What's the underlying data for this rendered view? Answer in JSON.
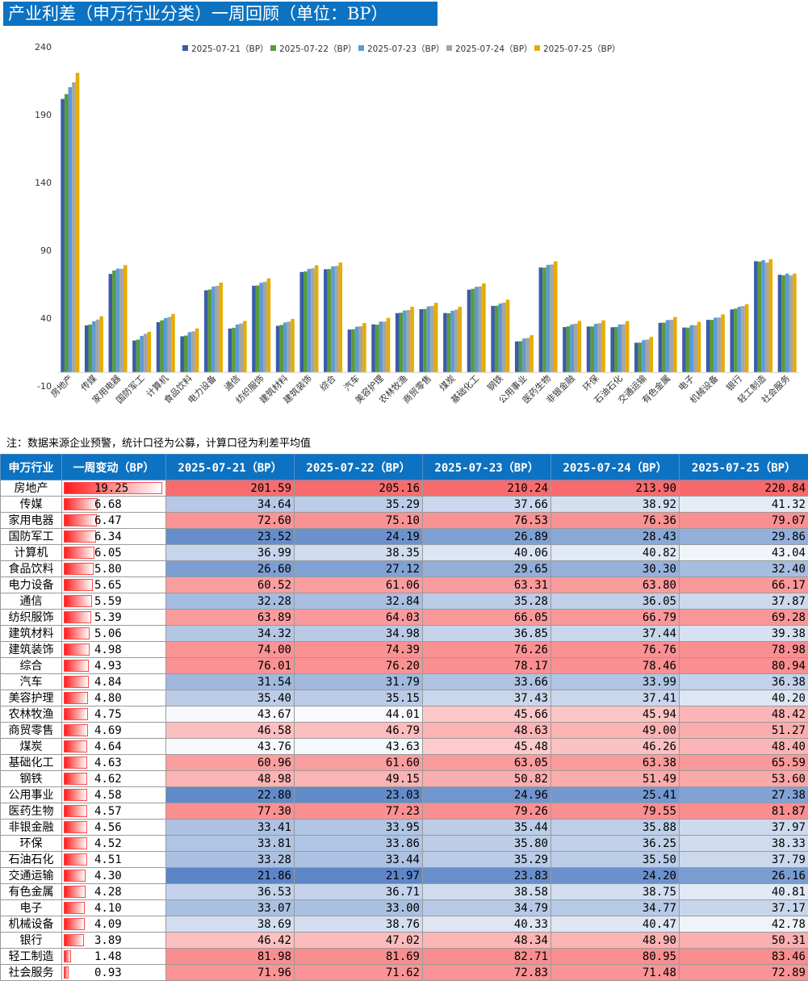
{
  "title": "产业利差（申万行业分类）一周回顾（单位：BP）",
  "note": "注：数据来源企业预警，统计口径为公募，计算口径为利差平均值",
  "colors": {
    "series": [
      "#3a5ca8",
      "#5a9a3c",
      "#5b9bd5",
      "#a5a5a5",
      "#e6ac00"
    ],
    "header_bg": "#0c72c1",
    "heat_low": "#5b85c6",
    "heat_mid": "#ffffff",
    "heat_high": "#f8696b"
  },
  "table": {
    "headers": [
      "申万行业",
      "一周变动（BP）",
      "2025-07-21（BP）",
      "2025-07-22（BP）",
      "2025-07-23（BP）",
      "2025-07-24（BP）",
      "2025-07-25（BP）"
    ],
    "rows": [
      {
        "industry": "房地产",
        "change": "19.25",
        "values": [
          "201.59",
          "205.16",
          "210.24",
          "213.90",
          "220.84"
        ]
      },
      {
        "industry": "传媒",
        "change": "6.68",
        "values": [
          "34.64",
          "35.29",
          "37.66",
          "38.92",
          "41.32"
        ]
      },
      {
        "industry": "家用电器",
        "change": "6.47",
        "values": [
          "72.60",
          "75.10",
          "76.53",
          "76.36",
          "79.07"
        ]
      },
      {
        "industry": "国防军工",
        "change": "6.34",
        "values": [
          "23.52",
          "24.19",
          "26.89",
          "28.43",
          "29.86"
        ]
      },
      {
        "industry": "计算机",
        "change": "6.05",
        "values": [
          "36.99",
          "38.35",
          "40.06",
          "40.82",
          "43.04"
        ]
      },
      {
        "industry": "食品饮料",
        "change": "5.80",
        "values": [
          "26.60",
          "27.12",
          "29.65",
          "30.30",
          "32.40"
        ]
      },
      {
        "industry": "电力设备",
        "change": "5.65",
        "values": [
          "60.52",
          "61.06",
          "63.31",
          "63.80",
          "66.17"
        ]
      },
      {
        "industry": "通信",
        "change": "5.59",
        "values": [
          "32.28",
          "32.84",
          "35.28",
          "36.05",
          "37.87"
        ]
      },
      {
        "industry": "纺织服饰",
        "change": "5.39",
        "values": [
          "63.89",
          "64.03",
          "66.05",
          "66.79",
          "69.28"
        ]
      },
      {
        "industry": "建筑材料",
        "change": "5.06",
        "values": [
          "34.32",
          "34.98",
          "36.85",
          "37.44",
          "39.38"
        ]
      },
      {
        "industry": "建筑装饰",
        "change": "4.98",
        "values": [
          "74.00",
          "74.39",
          "76.26",
          "76.76",
          "78.98"
        ]
      },
      {
        "industry": "综合",
        "change": "4.93",
        "values": [
          "76.01",
          "76.20",
          "78.17",
          "78.46",
          "80.94"
        ]
      },
      {
        "industry": "汽车",
        "change": "4.84",
        "values": [
          "31.54",
          "31.79",
          "33.66",
          "33.99",
          "36.38"
        ]
      },
      {
        "industry": "美容护理",
        "change": "4.80",
        "values": [
          "35.40",
          "35.15",
          "37.43",
          "37.41",
          "40.20"
        ]
      },
      {
        "industry": "农林牧渔",
        "change": "4.75",
        "values": [
          "43.67",
          "44.01",
          "45.66",
          "45.94",
          "48.42"
        ]
      },
      {
        "industry": "商贸零售",
        "change": "4.69",
        "values": [
          "46.58",
          "46.79",
          "48.63",
          "49.00",
          "51.27"
        ]
      },
      {
        "industry": "煤炭",
        "change": "4.64",
        "values": [
          "43.76",
          "43.63",
          "45.48",
          "46.26",
          "48.40"
        ]
      },
      {
        "industry": "基础化工",
        "change": "4.63",
        "values": [
          "60.96",
          "61.60",
          "63.05",
          "63.38",
          "65.59"
        ]
      },
      {
        "industry": "钢铁",
        "change": "4.62",
        "values": [
          "48.98",
          "49.15",
          "50.82",
          "51.49",
          "53.60"
        ]
      },
      {
        "industry": "公用事业",
        "change": "4.58",
        "values": [
          "22.80",
          "23.03",
          "24.96",
          "25.41",
          "27.38"
        ]
      },
      {
        "industry": "医药生物",
        "change": "4.57",
        "values": [
          "77.30",
          "77.23",
          "79.26",
          "79.55",
          "81.87"
        ]
      },
      {
        "industry": "非银金融",
        "change": "4.56",
        "values": [
          "33.41",
          "33.95",
          "35.44",
          "35.88",
          "37.97"
        ]
      },
      {
        "industry": "环保",
        "change": "4.52",
        "values": [
          "33.81",
          "33.86",
          "35.80",
          "36.25",
          "38.33"
        ]
      },
      {
        "industry": "石油石化",
        "change": "4.51",
        "values": [
          "33.28",
          "33.44",
          "35.29",
          "35.50",
          "37.79"
        ]
      },
      {
        "industry": "交通运输",
        "change": "4.30",
        "values": [
          "21.86",
          "21.97",
          "23.83",
          "24.20",
          "26.16"
        ]
      },
      {
        "industry": "有色金属",
        "change": "4.28",
        "values": [
          "36.53",
          "36.71",
          "38.58",
          "38.75",
          "40.81"
        ]
      },
      {
        "industry": "电子",
        "change": "4.10",
        "values": [
          "33.07",
          "33.00",
          "34.79",
          "34.77",
          "37.17"
        ]
      },
      {
        "industry": "机械设备",
        "change": "4.09",
        "values": [
          "38.69",
          "38.76",
          "40.33",
          "40.47",
          "42.78"
        ]
      },
      {
        "industry": "银行",
        "change": "3.89",
        "values": [
          "46.42",
          "47.02",
          "48.34",
          "48.90",
          "50.31"
        ]
      },
      {
        "industry": "轻工制造",
        "change": "1.48",
        "values": [
          "81.98",
          "81.69",
          "82.71",
          "80.95",
          "83.46"
        ]
      },
      {
        "industry": "社会服务",
        "change": "0.93",
        "values": [
          "71.96",
          "71.62",
          "72.83",
          "71.48",
          "72.89"
        ]
      }
    ]
  },
  "chart_data": {
    "type": "bar",
    "title": "",
    "xlabel": "",
    "ylabel": "",
    "ylim": [
      -10,
      240
    ],
    "yticks": [
      -10,
      40,
      90,
      140,
      190,
      240
    ],
    "grid": false,
    "legend_position": "top",
    "categories": [
      "房地产",
      "传媒",
      "家用电器",
      "国防军工",
      "计算机",
      "食品饮料",
      "电力设备",
      "通信",
      "纺织服饰",
      "建筑材料",
      "建筑装饰",
      "综合",
      "汽车",
      "美容护理",
      "农林牧渔",
      "商贸零售",
      "煤炭",
      "基础化工",
      "钢铁",
      "公用事业",
      "医药生物",
      "非银金融",
      "环保",
      "石油石化",
      "交通运输",
      "有色金属",
      "电子",
      "机械设备",
      "银行",
      "轻工制造",
      "社会服务"
    ],
    "series": [
      {
        "name": "2025-07-21（BP）",
        "values": [
          201.59,
          34.64,
          72.6,
          23.52,
          36.99,
          26.6,
          60.52,
          32.28,
          63.89,
          34.32,
          74.0,
          76.01,
          31.54,
          35.4,
          43.67,
          46.58,
          43.76,
          60.96,
          48.98,
          22.8,
          77.3,
          33.41,
          33.81,
          33.28,
          21.86,
          36.53,
          33.07,
          38.69,
          46.42,
          81.98,
          71.96
        ]
      },
      {
        "name": "2025-07-22（BP）",
        "values": [
          205.16,
          35.29,
          75.1,
          24.19,
          38.35,
          27.12,
          61.06,
          32.84,
          64.03,
          34.98,
          74.39,
          76.2,
          31.79,
          35.15,
          44.01,
          46.79,
          43.63,
          61.6,
          49.15,
          23.03,
          77.23,
          33.95,
          33.86,
          33.44,
          21.97,
          36.71,
          33.0,
          38.76,
          47.02,
          81.69,
          71.62
        ]
      },
      {
        "name": "2025-07-23（BP）",
        "values": [
          210.24,
          37.66,
          76.53,
          26.89,
          40.06,
          29.65,
          63.31,
          35.28,
          66.05,
          36.85,
          76.26,
          78.17,
          33.66,
          37.43,
          45.66,
          48.63,
          45.48,
          63.05,
          50.82,
          24.96,
          79.26,
          35.44,
          35.8,
          35.29,
          23.83,
          38.58,
          34.79,
          40.33,
          48.34,
          82.71,
          72.83
        ]
      },
      {
        "name": "2025-07-24（BP）",
        "values": [
          213.9,
          38.92,
          76.36,
          28.43,
          40.82,
          30.3,
          63.8,
          36.05,
          66.79,
          37.44,
          76.76,
          78.46,
          33.99,
          37.41,
          45.94,
          49.0,
          46.26,
          63.38,
          51.49,
          25.41,
          79.55,
          35.88,
          36.25,
          35.5,
          24.2,
          38.75,
          34.77,
          40.47,
          48.9,
          80.95,
          71.48
        ]
      },
      {
        "name": "2025-07-25（BP）",
        "values": [
          220.84,
          41.32,
          79.07,
          29.86,
          43.04,
          32.4,
          66.17,
          37.87,
          69.28,
          39.38,
          78.98,
          80.94,
          36.38,
          40.2,
          48.42,
          51.27,
          48.4,
          65.59,
          53.6,
          27.38,
          81.87,
          37.97,
          38.33,
          37.79,
          26.16,
          40.81,
          37.17,
          42.78,
          50.31,
          83.46,
          72.89
        ]
      }
    ]
  }
}
